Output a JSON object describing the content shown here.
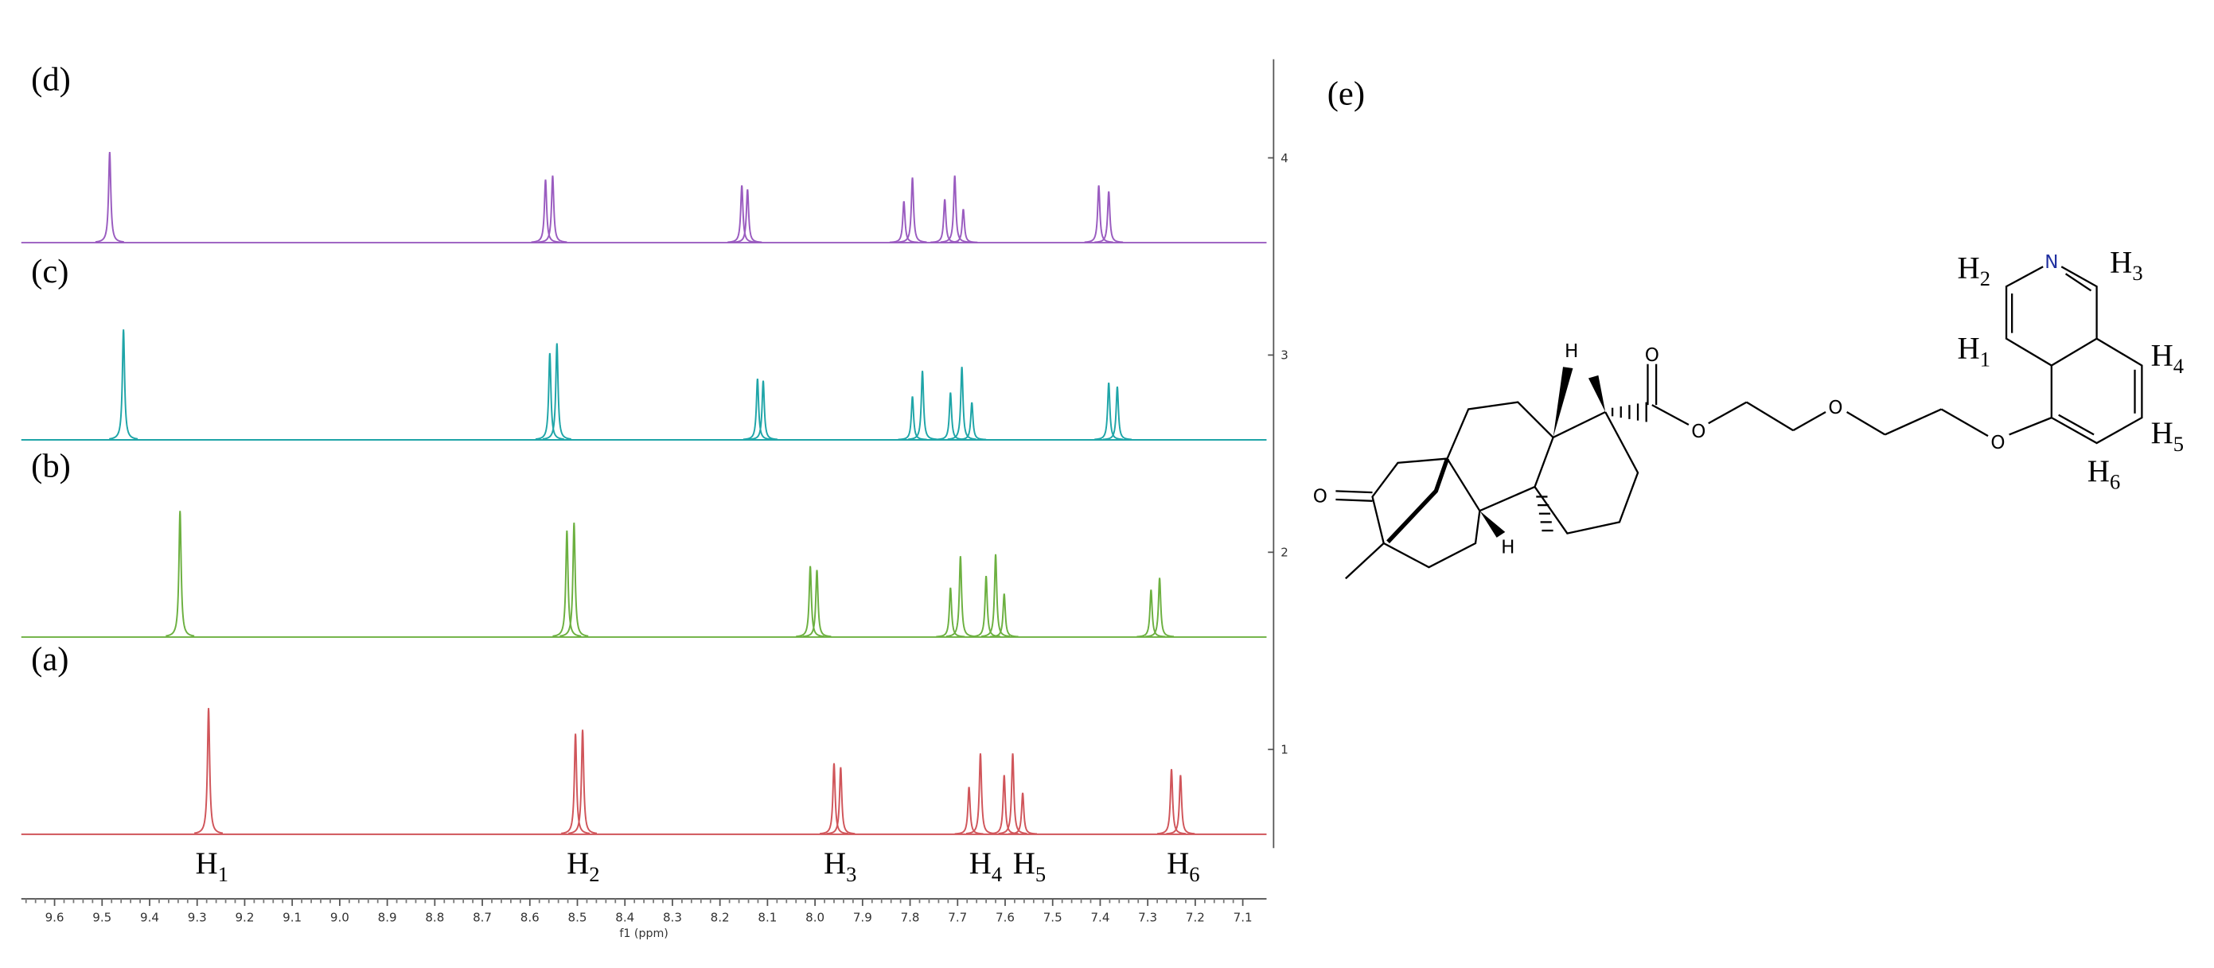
{
  "chart_data": {
    "type": "nmr",
    "xlabel": "f1 (ppm)",
    "xlim": [
      9.67,
      7.05
    ],
    "ylim": [
      0.5,
      4.5
    ],
    "xticks": [
      9.6,
      9.5,
      9.4,
      9.3,
      9.2,
      9.1,
      {
        "value": 9,
        "label": "9.0"
      },
      8.9,
      8.8,
      8.7,
      8.6,
      8.5,
      8.4,
      8.3,
      8.2,
      8.1,
      {
        "value": 8,
        "label": "8.0"
      },
      7.9,
      7.8,
      7.7,
      7.6,
      7.5,
      7.4,
      7.3,
      7.2,
      7.1
    ],
    "yticks": [
      1,
      2,
      3,
      4
    ],
    "series": [
      {
        "name": "(a)",
        "color": "#d0555a",
        "baseline": 0.57,
        "x": [
          9.276,
          8.504,
          8.489,
          7.96,
          7.946,
          7.676,
          7.652,
          7.602,
          7.584,
          7.563,
          7.25,
          7.231
        ],
        "values": [
          1.21,
          1.08,
          1.1,
          0.93,
          0.91,
          0.81,
          0.98,
          0.87,
          0.98,
          0.78,
          0.9,
          0.87
        ]
      },
      {
        "name": "(b)",
        "color": "#6cb040",
        "baseline": 1.57,
        "x": [
          9.336,
          8.522,
          8.507,
          8.01,
          7.996,
          7.715,
          7.694,
          7.64,
          7.62,
          7.602,
          7.293,
          7.275
        ],
        "values": [
          2.21,
          2.11,
          2.15,
          1.93,
          1.91,
          1.82,
          1.98,
          1.88,
          1.99,
          1.79,
          1.81,
          1.87
        ]
      },
      {
        "name": "(c)",
        "color": "#1fa5a8",
        "baseline": 2.57,
        "x": [
          9.455,
          8.558,
          8.543,
          8.121,
          8.109,
          7.795,
          7.774,
          7.715,
          7.691,
          7.67,
          7.382,
          7.364
        ],
        "values": [
          3.13,
          3.01,
          3.06,
          2.88,
          2.87,
          2.79,
          2.92,
          2.81,
          2.94,
          2.76,
          2.86,
          2.84
        ]
      },
      {
        "name": "(d)",
        "color": "#9a5cc0",
        "baseline": 3.57,
        "x": [
          9.484,
          8.567,
          8.552,
          8.154,
          8.142,
          7.813,
          7.795,
          7.727,
          7.706,
          7.688,
          7.403,
          7.382
        ],
        "values": [
          4.03,
          3.89,
          3.91,
          3.86,
          3.84,
          3.78,
          3.9,
          3.79,
          3.91,
          3.74,
          3.86,
          3.83
        ]
      }
    ],
    "peak_labels": [
      {
        "text": "H",
        "sub": "1"
      },
      {
        "text": "H",
        "sub": "2"
      },
      {
        "text": "H",
        "sub": "3"
      },
      {
        "text": "H",
        "sub": "4"
      },
      {
        "text": "H",
        "sub": "5"
      },
      {
        "text": "H",
        "sub": "6"
      }
    ]
  },
  "structure": {
    "title": "(e)",
    "atoms": [
      "O",
      "O",
      "O",
      "O",
      "O",
      "N",
      "H",
      "H"
    ],
    "proton_labels": [
      {
        "text": "H",
        "sub": "1"
      },
      {
        "text": "H",
        "sub": "2"
      },
      {
        "text": "H",
        "sub": "3"
      },
      {
        "text": "H",
        "sub": "4"
      },
      {
        "text": "H",
        "sub": "5"
      },
      {
        "text": "H",
        "sub": "6"
      }
    ]
  }
}
